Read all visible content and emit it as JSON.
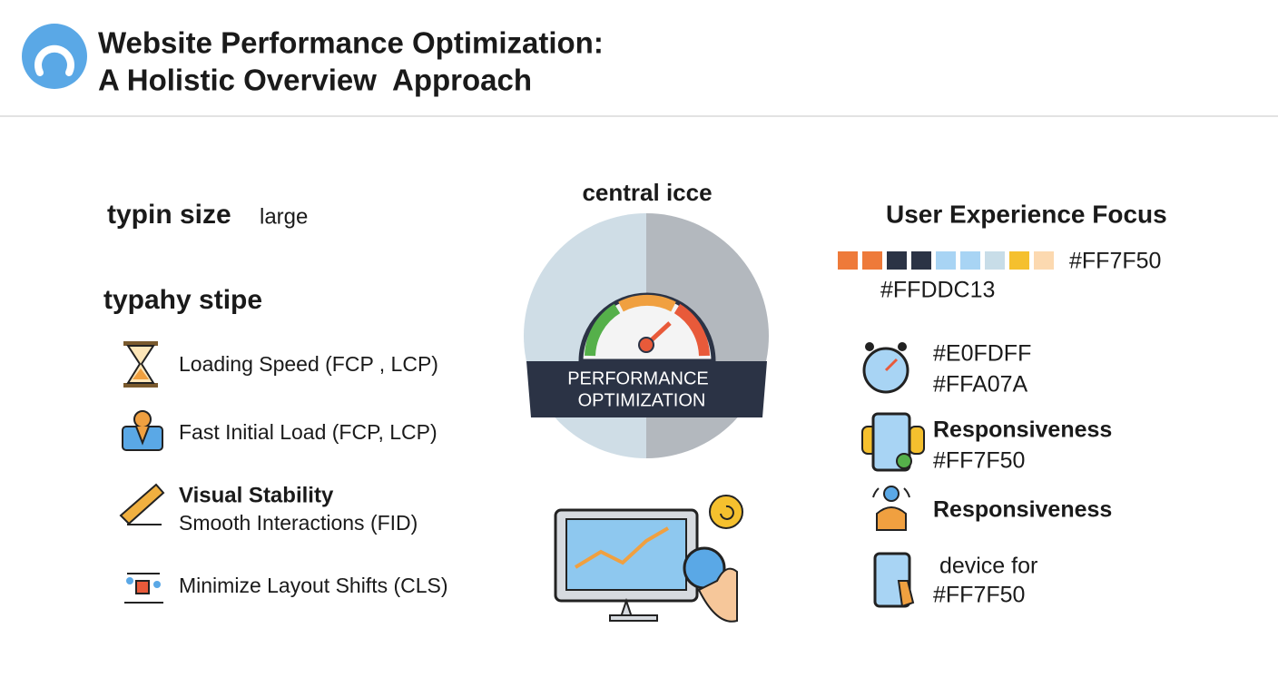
{
  "header": {
    "title_lines": [
      "Website Performance Optimization:",
      "A Holistic Overview  Approach"
    ]
  },
  "left": {
    "heading": "typin size",
    "heading_note": "large",
    "subheading": "typahy stipe",
    "items": [
      {
        "text": "Loading Speed (FCP , LCP)"
      },
      {
        "text": "Fast Initial Load (FCP, LCP)"
      },
      {
        "title": "Visual Stability",
        "text": "Smooth Interactions (FID)"
      },
      {
        "text": "Minimize Layout Shifts (CLS)"
      }
    ]
  },
  "center": {
    "label": "central icce",
    "badge_lines": [
      "PERFORMANCE",
      "OPTIMIZATION"
    ]
  },
  "right": {
    "title": "User Experience Focus",
    "palette_labels": [
      "#FF7F50",
      "#FFDDC13"
    ],
    "items": [
      {
        "lines": [
          "#E0FDFF",
          "#FFA07A"
        ]
      },
      {
        "lines": [
          "Responsiveness",
          "#FF7F50"
        ]
      },
      {
        "lines": [
          "Responsiveness"
        ]
      },
      {
        "lines": [
          " device for",
          "#FF7F50"
        ]
      }
    ]
  }
}
